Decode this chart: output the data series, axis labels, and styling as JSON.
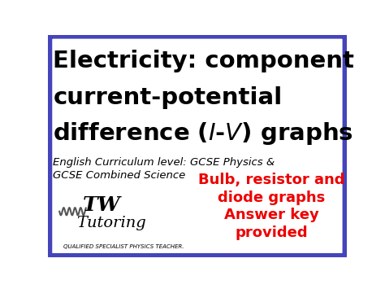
{
  "bg_color": "#ffffff",
  "border_color": "#4444bb",
  "border_linewidth": 5,
  "title_line1": "Electricity: component",
  "title_line2": "current-potential",
  "title_line3": "difference ( $\\mathit{I}$-$\\mathit{V}$ ) graphs",
  "subtitle_line1": "English Curriculum level: GCSE Physics &",
  "subtitle_line2": "GCSE Combined Science",
  "red_line1": "Bulb, resistor and",
  "red_line2": "diode graphs",
  "red_line3": "Answer key",
  "red_line4": "provided",
  "red_color": "#ee0000",
  "logo_sub": "QUALIFIED SPECIALIST PHYSICS TEACHER.",
  "title_fontsize": 21,
  "subtitle_fontsize": 9.5,
  "red_fontsize": 13,
  "logo_fontsize": 14
}
